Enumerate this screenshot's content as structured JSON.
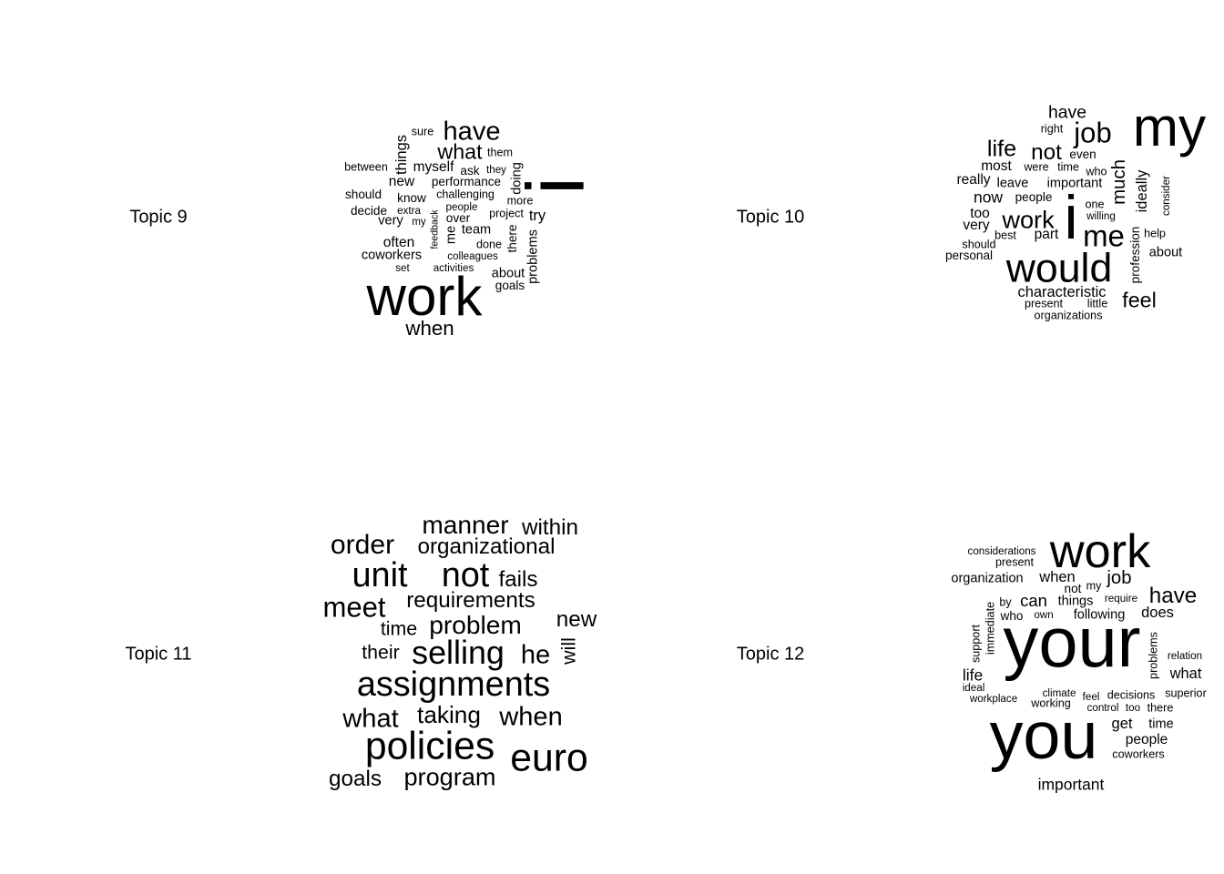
{
  "chart_data": [
    {
      "type": "wordcloud",
      "label": "Topic 9",
      "words": [
        {
          "text": "i",
          "weight": 92,
          "rotated": true
        },
        {
          "text": "work",
          "weight": 62
        },
        {
          "text": "have",
          "weight": 30
        },
        {
          "text": "what",
          "weight": 24
        },
        {
          "text": "when",
          "weight": 23
        },
        {
          "text": "things",
          "weight": 17,
          "rotated": true
        },
        {
          "text": "myself",
          "weight": 16
        },
        {
          "text": "new",
          "weight": 16
        },
        {
          "text": "try",
          "weight": 17
        },
        {
          "text": "team",
          "weight": 15
        },
        {
          "text": "often",
          "weight": 16
        },
        {
          "text": "coworkers",
          "weight": 15
        },
        {
          "text": "very",
          "weight": 15
        },
        {
          "text": "about",
          "weight": 15
        },
        {
          "text": "problems",
          "weight": 15,
          "rotated": true
        },
        {
          "text": "doing",
          "weight": 15,
          "rotated": true
        },
        {
          "text": "me",
          "weight": 15,
          "rotated": true
        },
        {
          "text": "performance",
          "weight": 14
        },
        {
          "text": "ask",
          "weight": 14
        },
        {
          "text": "know",
          "weight": 14
        },
        {
          "text": "over",
          "weight": 14
        },
        {
          "text": "should",
          "weight": 14
        },
        {
          "text": "decide",
          "weight": 14
        },
        {
          "text": "there",
          "weight": 14,
          "rotated": true
        },
        {
          "text": "goals",
          "weight": 14
        },
        {
          "text": "done",
          "weight": 13
        },
        {
          "text": "between",
          "weight": 13
        },
        {
          "text": "challenging",
          "weight": 13
        },
        {
          "text": "project",
          "weight": 13
        },
        {
          "text": "more",
          "weight": 13
        },
        {
          "text": "them",
          "weight": 13
        },
        {
          "text": "sure",
          "weight": 13
        },
        {
          "text": "they",
          "weight": 12
        },
        {
          "text": "people",
          "weight": 12
        },
        {
          "text": "colleagues",
          "weight": 12
        },
        {
          "text": "activities",
          "weight": 12
        },
        {
          "text": "extra",
          "weight": 12
        },
        {
          "text": "my",
          "weight": 12
        },
        {
          "text": "set",
          "weight": 12
        },
        {
          "text": "feedback",
          "weight": 11,
          "rotated": true
        }
      ]
    },
    {
      "type": "wordcloud",
      "label": "Topic 10",
      "words": [
        {
          "text": "my",
          "weight": 62
        },
        {
          "text": "i",
          "weight": 70
        },
        {
          "text": "would",
          "weight": 46
        },
        {
          "text": "me",
          "weight": 34
        },
        {
          "text": "job",
          "weight": 32
        },
        {
          "text": "work",
          "weight": 28
        },
        {
          "text": "life",
          "weight": 26
        },
        {
          "text": "not",
          "weight": 25
        },
        {
          "text": "feel",
          "weight": 24
        },
        {
          "text": "much",
          "weight": 21,
          "rotated": true
        },
        {
          "text": "have",
          "weight": 20
        },
        {
          "text": "now",
          "weight": 18
        },
        {
          "text": "characteristic",
          "weight": 17
        },
        {
          "text": "ideally",
          "weight": 17,
          "rotated": true
        },
        {
          "text": "most",
          "weight": 16
        },
        {
          "text": "really",
          "weight": 16
        },
        {
          "text": "too",
          "weight": 16
        },
        {
          "text": "very",
          "weight": 16
        },
        {
          "text": "part",
          "weight": 16
        },
        {
          "text": "leave",
          "weight": 15
        },
        {
          "text": "important",
          "weight": 15
        },
        {
          "text": "people",
          "weight": 14
        },
        {
          "text": "about",
          "weight": 15
        },
        {
          "text": "profession",
          "weight": 14,
          "rotated": true
        },
        {
          "text": "even",
          "weight": 14
        },
        {
          "text": "right",
          "weight": 13
        },
        {
          "text": "were",
          "weight": 13
        },
        {
          "text": "time",
          "weight": 13
        },
        {
          "text": "who",
          "weight": 13
        },
        {
          "text": "one",
          "weight": 13
        },
        {
          "text": "willing",
          "weight": 12
        },
        {
          "text": "best",
          "weight": 13
        },
        {
          "text": "help",
          "weight": 13
        },
        {
          "text": "should",
          "weight": 13
        },
        {
          "text": "personal",
          "weight": 14
        },
        {
          "text": "present",
          "weight": 13
        },
        {
          "text": "little",
          "weight": 13
        },
        {
          "text": "organizations",
          "weight": 13
        },
        {
          "text": "consider",
          "weight": 12,
          "rotated": true
        }
      ]
    },
    {
      "type": "wordcloud",
      "label": "Topic 11",
      "words": [
        {
          "text": "policies",
          "weight": 44
        },
        {
          "text": "euro",
          "weight": 44
        },
        {
          "text": "assignments",
          "weight": 39
        },
        {
          "text": "unit",
          "weight": 39
        },
        {
          "text": "not",
          "weight": 39
        },
        {
          "text": "selling",
          "weight": 37
        },
        {
          "text": "meet",
          "weight": 32
        },
        {
          "text": "order",
          "weight": 31
        },
        {
          "text": "manner",
          "weight": 29
        },
        {
          "text": "problem",
          "weight": 29
        },
        {
          "text": "when",
          "weight": 30
        },
        {
          "text": "he",
          "weight": 30
        },
        {
          "text": "what",
          "weight": 30
        },
        {
          "text": "taking",
          "weight": 27
        },
        {
          "text": "program",
          "weight": 28
        },
        {
          "text": "goals",
          "weight": 25
        },
        {
          "text": "organizational",
          "weight": 25
        },
        {
          "text": "requirements",
          "weight": 25
        },
        {
          "text": "within",
          "weight": 25
        },
        {
          "text": "fails",
          "weight": 25
        },
        {
          "text": "new",
          "weight": 25
        },
        {
          "text": "time",
          "weight": 22
        },
        {
          "text": "their",
          "weight": 22
        },
        {
          "text": "will",
          "weight": 22,
          "rotated": true
        }
      ]
    },
    {
      "type": "wordcloud",
      "label": "Topic 12",
      "words": [
        {
          "text": "your",
          "weight": 80
        },
        {
          "text": "you",
          "weight": 76
        },
        {
          "text": "work",
          "weight": 54
        },
        {
          "text": "have",
          "weight": 25
        },
        {
          "text": "job",
          "weight": 21
        },
        {
          "text": "can",
          "weight": 19
        },
        {
          "text": "important",
          "weight": 18
        },
        {
          "text": "when",
          "weight": 17
        },
        {
          "text": "what",
          "weight": 17
        },
        {
          "text": "does",
          "weight": 17
        },
        {
          "text": "get",
          "weight": 17
        },
        {
          "text": "life",
          "weight": 18
        },
        {
          "text": "people",
          "weight": 16
        },
        {
          "text": "organization",
          "weight": 15
        },
        {
          "text": "things",
          "weight": 15
        },
        {
          "text": "following",
          "weight": 15
        },
        {
          "text": "time",
          "weight": 15
        },
        {
          "text": "present",
          "weight": 13
        },
        {
          "text": "not",
          "weight": 14
        },
        {
          "text": "who",
          "weight": 14
        },
        {
          "text": "my",
          "weight": 13
        },
        {
          "text": "decisions",
          "weight": 13
        },
        {
          "text": "superior",
          "weight": 13
        },
        {
          "text": "working",
          "weight": 13
        },
        {
          "text": "coworkers",
          "weight": 13
        },
        {
          "text": "there",
          "weight": 13
        },
        {
          "text": "climate",
          "weight": 12
        },
        {
          "text": "feel",
          "weight": 12
        },
        {
          "text": "considerations",
          "weight": 12
        },
        {
          "text": "by",
          "weight": 13
        },
        {
          "text": "own",
          "weight": 12
        },
        {
          "text": "require",
          "weight": 12
        },
        {
          "text": "relation",
          "weight": 12
        },
        {
          "text": "ideal",
          "weight": 12
        },
        {
          "text": "workplace",
          "weight": 12
        },
        {
          "text": "control",
          "weight": 12
        },
        {
          "text": "too",
          "weight": 12
        },
        {
          "text": "immediate",
          "weight": 13,
          "rotated": true
        },
        {
          "text": "support",
          "weight": 13,
          "rotated": true
        },
        {
          "text": "problems",
          "weight": 13,
          "rotated": true
        }
      ]
    }
  ]
}
